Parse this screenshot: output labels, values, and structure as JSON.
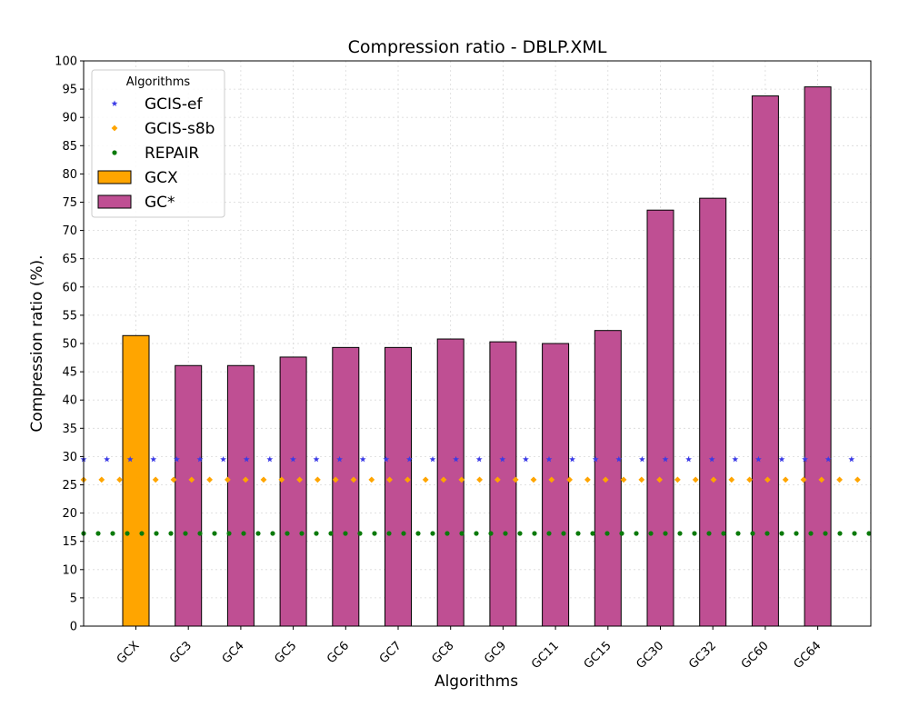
{
  "chart_data": {
    "type": "bar",
    "title": "Compression ratio -  DBLP.XML",
    "xlabel": "Algorithms",
    "ylabel": "Compression ratio (%).",
    "ylim": [
      0,
      100
    ],
    "ytick_step": 5,
    "grid": true,
    "categories": [
      "GCX",
      "GC3",
      "GC4",
      "GC5",
      "GC6",
      "GC7",
      "GC8",
      "GC9",
      "GC11",
      "GC15",
      "GC30",
      "GC32",
      "GC60",
      "GC64"
    ],
    "bars": [
      {
        "name": "GCX",
        "color": "#ffa500",
        "values": [
          51.4,
          null,
          null,
          null,
          null,
          null,
          null,
          null,
          null,
          null,
          null,
          null,
          null,
          null
        ]
      },
      {
        "name": "GC*",
        "color": "#bf4f93",
        "values": [
          null,
          46.1,
          46.1,
          47.6,
          49.3,
          49.3,
          50.8,
          50.3,
          50.0,
          52.3,
          73.6,
          75.7,
          93.8,
          95.4
        ]
      }
    ],
    "reference_lines": [
      {
        "name": "GCIS-ef",
        "value": 29.5,
        "marker": "star",
        "color": "#3a3ae6"
      },
      {
        "name": "GCIS-s8b",
        "value": 25.9,
        "marker": "diamond",
        "color": "#ffa500"
      },
      {
        "name": "REPAIR",
        "value": 16.4,
        "marker": "circle",
        "color": "#0a7a0a"
      }
    ],
    "legend": {
      "title": "Algorithms",
      "placement": "top-left",
      "entries": [
        "GCIS-ef",
        "GCIS-s8b",
        "REPAIR",
        "GCX",
        "GC*"
      ]
    }
  }
}
